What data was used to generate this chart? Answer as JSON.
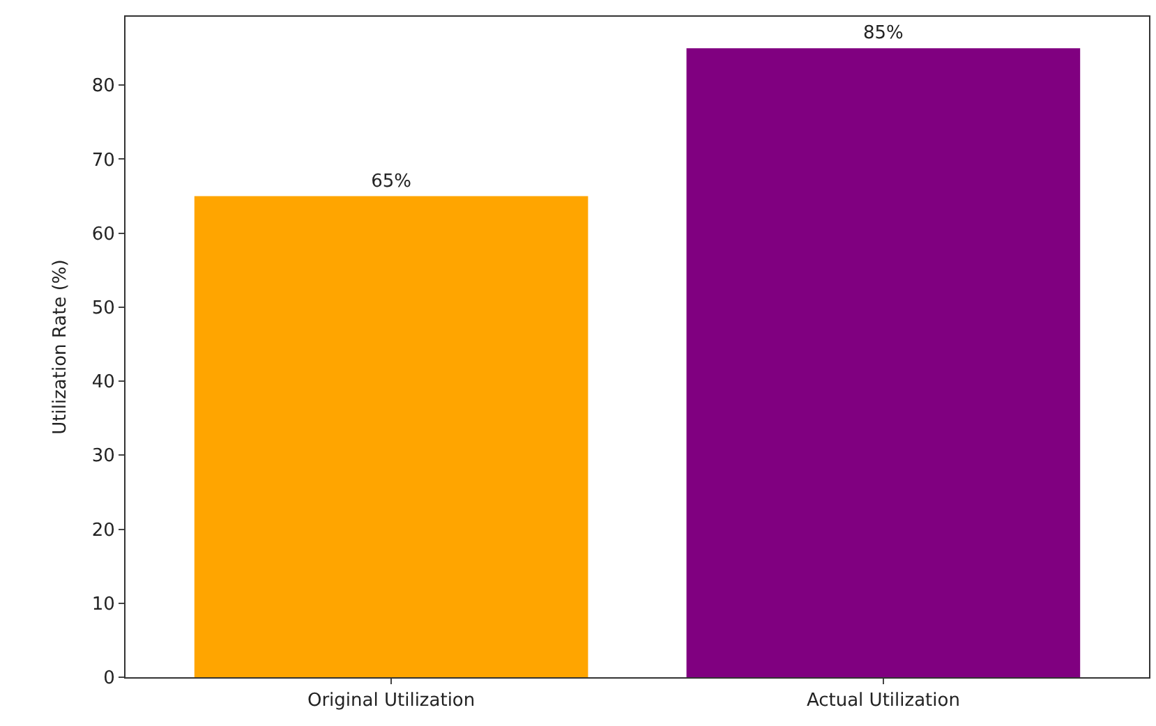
{
  "chart_data": {
    "type": "bar",
    "ylabel": "Utilization Rate (%)",
    "categories": [
      "Original Utilization",
      "Actual Utilization"
    ],
    "values": [
      65,
      85
    ],
    "colors": [
      "#ffa500",
      "#800080"
    ],
    "value_labels": [
      "65%",
      "85%"
    ],
    "ylim": [
      0,
      89.25
    ],
    "yticks": [
      0,
      10,
      20,
      30,
      40,
      50,
      60,
      70,
      80
    ]
  }
}
